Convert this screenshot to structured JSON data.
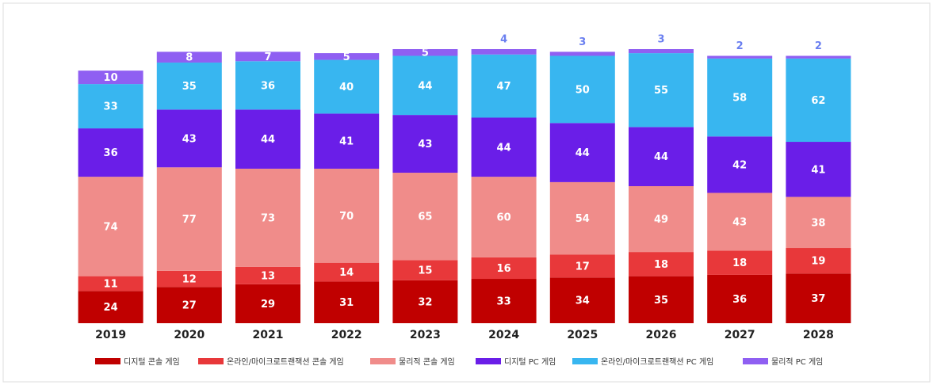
{
  "chart_data": {
    "type": "stacked_bar",
    "categories": [
      "2019",
      "2020",
      "2021",
      "2022",
      "2023",
      "2024",
      "2025",
      "2026",
      "2027",
      "2028"
    ],
    "series": [
      {
        "name": "디지털 콘솔 게임",
        "color": "#c00000",
        "values": [
          24,
          27,
          29,
          31,
          32,
          33,
          34,
          35,
          36,
          37
        ]
      },
      {
        "name": "온라인/마이크로트랜잭션 콘솔 게임",
        "color": "#e8383a",
        "values": [
          11,
          12,
          13,
          14,
          15,
          16,
          17,
          18,
          18,
          19
        ]
      },
      {
        "name": "물리적 콘솔 게임",
        "color": "#f08c8a",
        "values": [
          74,
          77,
          73,
          70,
          65,
          60,
          54,
          49,
          43,
          38
        ]
      },
      {
        "name": "디지털 PC 게임",
        "color": "#6a1ee8",
        "values": [
          36,
          43,
          44,
          41,
          43,
          44,
          44,
          44,
          42,
          41
        ]
      },
      {
        "name": "온라인/마이크로트랜잭션 PC 게임",
        "color": "#38b6f0",
        "values": [
          33,
          35,
          36,
          40,
          44,
          47,
          50,
          55,
          58,
          62
        ]
      },
      {
        "name": "물리적 PC 게임",
        "color": "#8f5ff2",
        "values": [
          10,
          8,
          7,
          5,
          5,
          4,
          3,
          3,
          2,
          2
        ]
      }
    ]
  }
}
